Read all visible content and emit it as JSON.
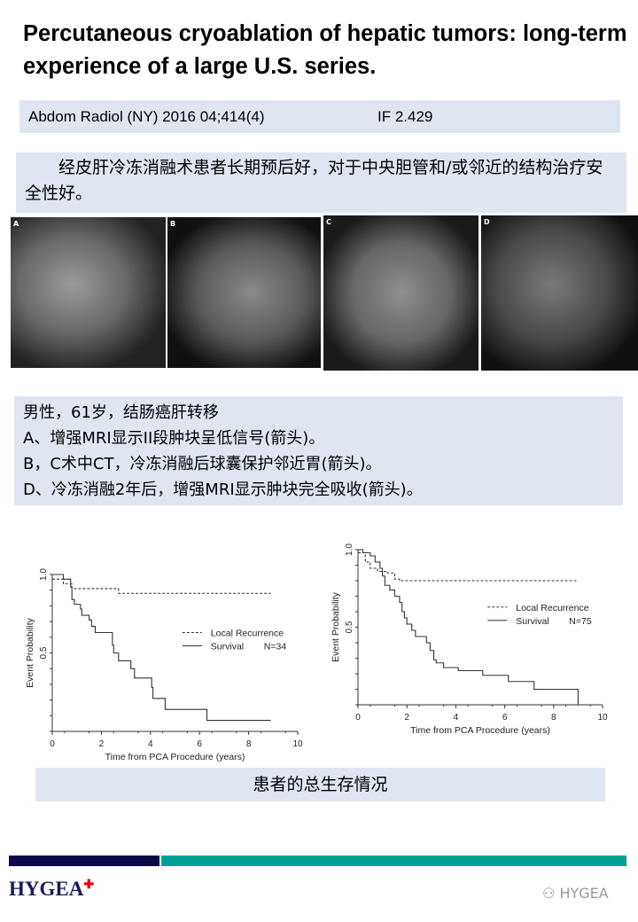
{
  "title": "Percutaneous cryoablation of hepatic tumors: long-term experience of a large U.S. series.",
  "citation": {
    "journal": "Abdom Radiol (NY) 2016 04;414(4)",
    "impact_factor": "IF 2.429"
  },
  "summary": "经皮肝冷冻消融术患者长期预后好，对于中央胆管和/或邻近的结构治疗安全性好。",
  "images": [
    {
      "label": "A"
    },
    {
      "label": "B"
    },
    {
      "label": "C"
    },
    {
      "label": "D"
    }
  ],
  "caption": [
    "男性，61岁，结肠癌肝转移",
    "A、增强MRI显示II段肿块呈低信号(箭头)。",
    "B，C术中CT，冷冻消融后球囊保护邻近胃(箭头)。",
    "D、冷冻消融2年后，增强MRI显示肿块完全吸收(箭头)。"
  ],
  "bottom_caption": "患者的总生存情况",
  "footer": {
    "logo": "HYGEA",
    "watermark": "HYGEA",
    "bar_colors": [
      "#0a0a4a",
      "#00a096"
    ]
  },
  "chart_data": [
    {
      "type": "line",
      "xlabel": "Time from PCA Procedure (years)",
      "ylabel": "Event Probability",
      "xlim": [
        0,
        10
      ],
      "ylim": [
        0,
        1
      ],
      "xticks": [
        "0",
        "2",
        "4",
        "6",
        "8",
        "10"
      ],
      "yticks": [
        "0.5",
        "1.0"
      ],
      "legend_position": "right",
      "annotation": "N=34",
      "series": [
        {
          "name": "Local Recurrence",
          "style": "dashed",
          "points": [
            [
              0,
              0.97
            ],
            [
              0.45,
              0.94
            ],
            [
              0.8,
              0.91
            ],
            [
              2.7,
              0.88
            ],
            [
              8.9,
              0.88
            ]
          ]
        },
        {
          "name": "Survival",
          "style": "solid",
          "points": [
            [
              0,
              1
            ],
            [
              0.45,
              0.97
            ],
            [
              0.75,
              0.92
            ],
            [
              0.8,
              0.84
            ],
            [
              0.9,
              0.81
            ],
            [
              1.15,
              0.78
            ],
            [
              1.2,
              0.74
            ],
            [
              1.5,
              0.71
            ],
            [
              1.6,
              0.67
            ],
            [
              1.75,
              0.63
            ],
            [
              2.45,
              0.55
            ],
            [
              2.5,
              0.5
            ],
            [
              2.7,
              0.45
            ],
            [
              3.2,
              0.4
            ],
            [
              3.35,
              0.34
            ],
            [
              4.05,
              0.28
            ],
            [
              4.1,
              0.21
            ],
            [
              4.6,
              0.14
            ],
            [
              6.3,
              0.07
            ],
            [
              8.9,
              0.07
            ]
          ]
        }
      ]
    },
    {
      "type": "line",
      "xlabel": "Time from PCA Procedure (years)",
      "ylabel": "Event Probability",
      "xlim": [
        0,
        10
      ],
      "ylim": [
        0,
        1
      ],
      "xticks": [
        "0",
        "2",
        "4",
        "6",
        "8",
        "10"
      ],
      "yticks": [
        "0.5",
        "1.0"
      ],
      "legend_position": "right",
      "annotation": "N=75",
      "series": [
        {
          "name": "Local Recurrence",
          "style": "dashed",
          "points": [
            [
              0,
              0.98
            ],
            [
              0.3,
              0.92
            ],
            [
              0.5,
              0.88
            ],
            [
              0.8,
              0.86
            ],
            [
              1.2,
              0.85
            ],
            [
              1.5,
              0.81
            ],
            [
              1.7,
              0.8
            ],
            [
              9,
              0.8
            ]
          ]
        },
        {
          "name": "Survival",
          "style": "solid",
          "points": [
            [
              0,
              1
            ],
            [
              0.2,
              0.98
            ],
            [
              0.5,
              0.96
            ],
            [
              0.7,
              0.92
            ],
            [
              0.9,
              0.88
            ],
            [
              1,
              0.83
            ],
            [
              1.1,
              0.77
            ],
            [
              1.3,
              0.74
            ],
            [
              1.5,
              0.7
            ],
            [
              1.7,
              0.66
            ],
            [
              1.8,
              0.6
            ],
            [
              1.9,
              0.56
            ],
            [
              2,
              0.52
            ],
            [
              2.2,
              0.48
            ],
            [
              2.35,
              0.44
            ],
            [
              2.8,
              0.4
            ],
            [
              2.95,
              0.35
            ],
            [
              3.1,
              0.29
            ],
            [
              3.2,
              0.27
            ],
            [
              3.5,
              0.24
            ],
            [
              4.1,
              0.22
            ],
            [
              5.1,
              0.19
            ],
            [
              6.15,
              0.15
            ],
            [
              7.2,
              0.1
            ],
            [
              9,
              0.1
            ],
            [
              9,
              0
            ]
          ]
        }
      ]
    }
  ]
}
